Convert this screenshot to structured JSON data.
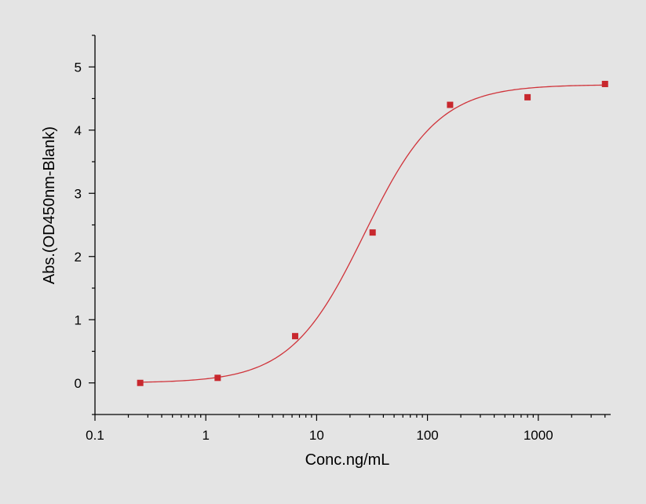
{
  "chart_data": {
    "type": "scatter",
    "title": "",
    "xlabel": "Conc.ng/mL",
    "ylabel": "Abs.(OD450nm-Blank)",
    "x_scale": "log",
    "xlim": [
      0.1,
      4500
    ],
    "ylim": [
      -0.5,
      5.5
    ],
    "x_ticks": [
      0.1,
      1,
      10,
      100,
      1000
    ],
    "x_tick_labels": [
      "0.1",
      "1",
      "10",
      "100",
      "1000"
    ],
    "y_ticks": [
      0,
      1,
      2,
      3,
      4,
      5
    ],
    "y_tick_labels": [
      "0",
      "1",
      "2",
      "3",
      "4",
      "5"
    ],
    "grid": false,
    "legend": "none",
    "series": [
      {
        "x": [
          0.256,
          1.28,
          6.4,
          32,
          160,
          800,
          4000
        ],
        "y": [
          0.0,
          0.08,
          0.74,
          2.38,
          4.4,
          4.52,
          4.73
        ],
        "marker": "square",
        "color": "#c8282e"
      }
    ],
    "fit_curve": {
      "model": "4PL",
      "bottom": 0.0,
      "top": 4.72,
      "ec50": 27,
      "hill": 1.3,
      "color": "#d0333a"
    }
  }
}
